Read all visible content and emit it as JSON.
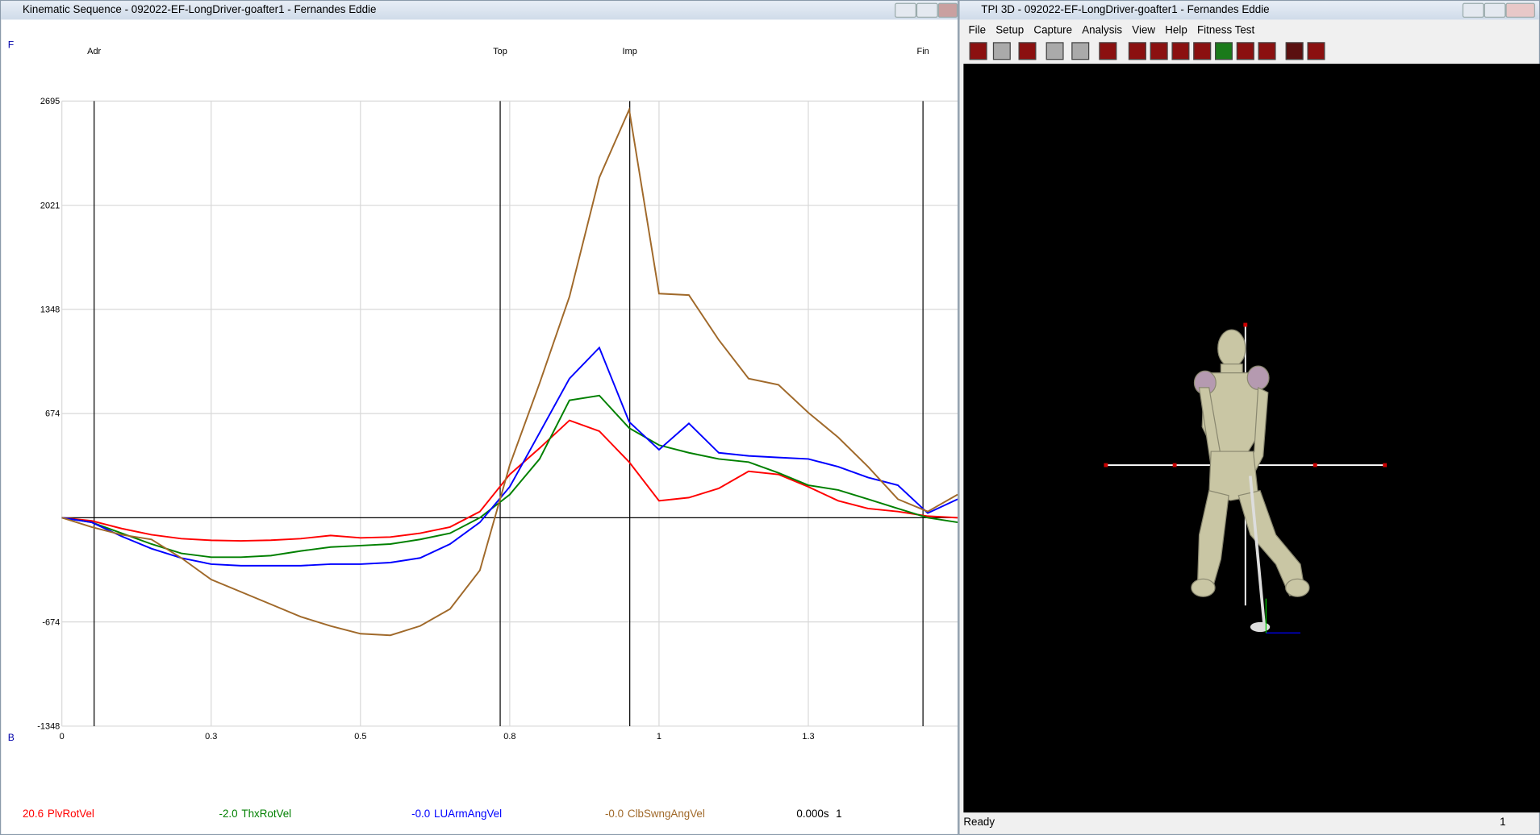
{
  "kinematic_window": {
    "title": "Kinematic Sequence  -  092022-EF-LongDriver-goafter1 - Fernandes Eddie",
    "chart_data": {
      "type": "line",
      "top_label": "F",
      "bottom_label": "B",
      "x": [
        0,
        0.05,
        0.1,
        0.15,
        0.2,
        0.25,
        0.3,
        0.35,
        0.4,
        0.45,
        0.5,
        0.55,
        0.6,
        0.65,
        0.7,
        0.75,
        0.8,
        0.85,
        0.9,
        0.95,
        1.0,
        1.05,
        1.1,
        1.15,
        1.2,
        1.25,
        1.3,
        1.35,
        1.4,
        1.45,
        1.5
      ],
      "xlim": [
        0,
        1.5
      ],
      "xticks": [
        0.0,
        {
          "value": 0.25,
          "label": "0.3"
        },
        0.5,
        {
          "value": 0.75,
          "label": "0.8"
        },
        1.0,
        {
          "value": 1.25,
          "label": "1.3"
        }
      ],
      "ylim": [
        -1348,
        2695
      ],
      "yticks": [
        -1348,
        -674,
        674,
        1348,
        2021,
        2695
      ],
      "grid": true,
      "events": [
        {
          "label": "Adr",
          "x": 0.054
        },
        {
          "label": "Top",
          "x": 0.734
        },
        {
          "label": "Imp",
          "x": 0.951
        },
        {
          "label": "Fin",
          "x": 1.442
        }
      ],
      "series": [
        {
          "name": "PlvRotVel",
          "readout": "20.6",
          "color": "#ff0000",
          "values": [
            0,
            -20,
            -70,
            -110,
            -135,
            -146,
            -150,
            -145,
            -135,
            -115,
            -130,
            -125,
            -100,
            -60,
            40,
            280,
            450,
            630,
            560,
            360,
            110,
            130,
            190,
            300,
            280,
            200,
            110,
            60,
            40,
            10,
            0
          ]
        },
        {
          "name": "ThxRotVel",
          "readout": "-2.0",
          "color": "#008000",
          "values": [
            0,
            -30,
            -100,
            -170,
            -230,
            -255,
            -255,
            -245,
            -215,
            -190,
            -180,
            -170,
            -140,
            -100,
            0,
            150,
            380,
            760,
            790,
            580,
            470,
            420,
            380,
            360,
            290,
            210,
            180,
            120,
            60,
            0,
            -30
          ]
        },
        {
          "name": "LUArmAngVel",
          "readout": "-0.0",
          "color": "#0000ff",
          "values": [
            0,
            -30,
            -120,
            -200,
            -260,
            -300,
            -310,
            -310,
            -310,
            -300,
            -300,
            -290,
            -260,
            -170,
            -30,
            200,
            550,
            900,
            1100,
            620,
            440,
            610,
            420,
            400,
            390,
            380,
            330,
            260,
            210,
            30,
            120
          ]
        },
        {
          "name": "ClbSwngAngVel",
          "readout": "-0.0",
          "color": "#a0692a",
          "values": [
            0,
            -60,
            -110,
            -140,
            -260,
            -400,
            -480,
            -560,
            -640,
            -700,
            -750,
            -760,
            -700,
            -590,
            -340,
            340,
            870,
            1430,
            2200,
            2640,
            1450,
            1440,
            1150,
            900,
            860,
            680,
            520,
            330,
            120,
            40,
            150
          ]
        }
      ],
      "time_readout": "0.000s",
      "frame_readout": "1"
    }
  },
  "tpi_window": {
    "title": "TPI 3D - 092022-EF-LongDriver-goafter1 - Fernandes Eddie",
    "menu": [
      "File",
      "Setup",
      "Capture",
      "Analysis",
      "View",
      "Help",
      "Fitness Test"
    ],
    "status": "Ready",
    "frame": "1"
  }
}
